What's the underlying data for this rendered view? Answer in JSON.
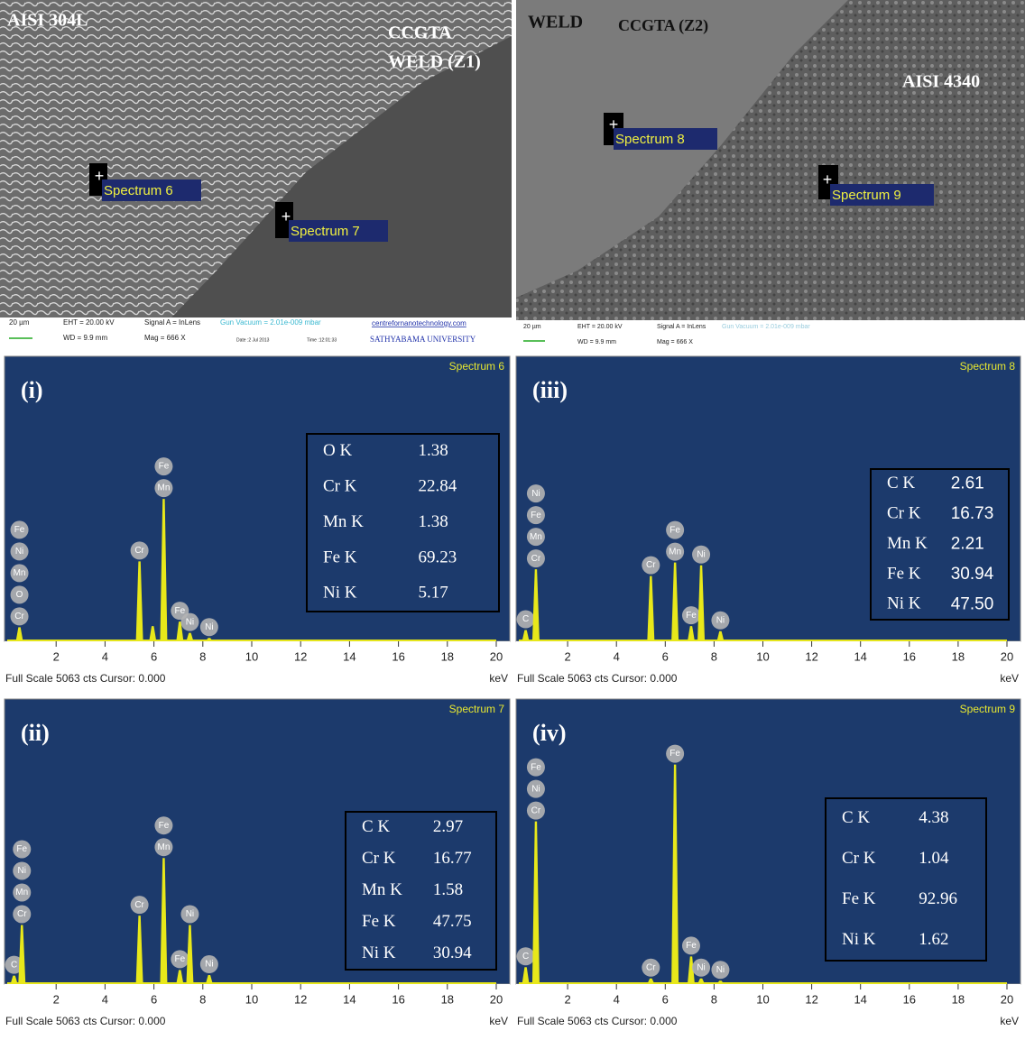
{
  "micrographs": [
    {
      "labels": [
        "AISI 304L",
        "CCGTA",
        "WELD (Z1)"
      ],
      "markers": [
        "Spectrum 6",
        "Spectrum 7"
      ],
      "footer": [
        "20 µm",
        "EHT = 20.00 kV",
        "WD = 9.9 mm",
        "Signal A = InLens",
        "Gun Vacuum = 2.01e-009 mbar",
        "Mag = 666 X",
        "Date :2 Jul 2013",
        "Time :12:01:33",
        "centrefornanotechnology.com",
        "SATHYABAMA UNIVERSITY"
      ]
    },
    {
      "labels": [
        "WELD",
        "CCGTA (Z2)",
        "AISI 4340"
      ],
      "markers": [
        "Spectrum 8",
        "Spectrum 9"
      ],
      "footer": [
        "20 µm",
        "EHT = 20.00 kV",
        "WD = 9.9 mm",
        "Signal A = InLens",
        "Gun Vacuum = 2.01e-009 mbar",
        "Mag = 666 X"
      ]
    }
  ],
  "spectra": [
    {
      "panel": "(i)",
      "name": "Spectrum 6",
      "x_unit": "keV",
      "footer": "Full Scale 5063 cts Cursor: 0.000",
      "xlim": [
        0,
        20
      ],
      "xticks": [
        2,
        4,
        6,
        8,
        10,
        12,
        14,
        16,
        18,
        20
      ],
      "ylim": [
        0,
        5063
      ],
      "composition": [
        [
          "O K",
          "1.38"
        ],
        [
          "Cr K",
          "22.84"
        ],
        [
          "Mn K",
          "1.38"
        ],
        [
          "Fe K",
          "69.23"
        ],
        [
          "Ni K",
          "5.17"
        ]
      ],
      "peaks": [
        {
          "energy": 0.5,
          "height": 250,
          "labels": [
            "Fe",
            "Ni",
            "Mn",
            "O",
            "Cr"
          ]
        },
        {
          "energy": 5.41,
          "height": 1420,
          "labels": [
            "Cr"
          ]
        },
        {
          "energy": 5.95,
          "height": 270,
          "labels": []
        },
        {
          "energy": 6.4,
          "height": 2530,
          "labels": [
            "Fe",
            "Mn"
          ]
        },
        {
          "energy": 7.06,
          "height": 350,
          "labels": [
            "Fe"
          ]
        },
        {
          "energy": 7.47,
          "height": 150,
          "labels": [
            "Ni"
          ]
        },
        {
          "energy": 8.26,
          "height": 60,
          "labels": [
            "Ni"
          ]
        }
      ]
    },
    {
      "panel": "(iii)",
      "name": "Spectrum 8",
      "x_unit": "keV",
      "footer": "Full Scale 5063 cts Cursor: 0.000",
      "xlim": [
        0,
        20
      ],
      "xticks": [
        2,
        4,
        6,
        8,
        10,
        12,
        14,
        16,
        18,
        20
      ],
      "ylim": [
        0,
        5063
      ],
      "composition": [
        [
          "C K",
          "2.61"
        ],
        [
          "Cr K",
          "16.73"
        ],
        [
          "Mn K",
          "2.21"
        ],
        [
          "Fe K",
          "30.94"
        ],
        [
          "Ni K",
          "47.50"
        ]
      ],
      "peaks": [
        {
          "energy": 0.28,
          "height": 200,
          "labels": [
            "C"
          ]
        },
        {
          "energy": 0.7,
          "height": 1280,
          "labels": [
            "Ni",
            "Fe",
            "Mn",
            "Cr"
          ]
        },
        {
          "energy": 5.41,
          "height": 1160,
          "labels": [
            "Cr"
          ]
        },
        {
          "energy": 6.4,
          "height": 1400,
          "labels": [
            "Fe",
            "Mn"
          ]
        },
        {
          "energy": 7.06,
          "height": 270,
          "labels": [
            "Fe"
          ]
        },
        {
          "energy": 7.47,
          "height": 1350,
          "labels": [
            "Ni"
          ]
        },
        {
          "energy": 8.26,
          "height": 180,
          "labels": [
            "Ni"
          ]
        }
      ]
    },
    {
      "panel": "(ii)",
      "name": "Spectrum 7",
      "x_unit": "keV",
      "footer": "Full Scale 5063 cts Cursor: 0.000",
      "xlim": [
        0,
        20
      ],
      "xticks": [
        2,
        4,
        6,
        8,
        10,
        12,
        14,
        16,
        18,
        20
      ],
      "ylim": [
        0,
        5063
      ],
      "composition": [
        [
          "C K",
          "2.97"
        ],
        [
          "Cr K",
          "16.77"
        ],
        [
          "Mn K",
          "1.58"
        ],
        [
          "Fe K",
          "47.75"
        ],
        [
          "Ni K",
          "30.94"
        ]
      ],
      "peaks": [
        {
          "energy": 0.28,
          "height": 150,
          "labels": [
            "C"
          ]
        },
        {
          "energy": 0.6,
          "height": 1050,
          "labels": [
            "Fe",
            "Ni",
            "Mn",
            "Cr"
          ]
        },
        {
          "energy": 5.41,
          "height": 1215,
          "labels": [
            "Cr"
          ]
        },
        {
          "energy": 6.4,
          "height": 2240,
          "labels": [
            "Fe",
            "Mn"
          ]
        },
        {
          "energy": 7.06,
          "height": 250,
          "labels": [
            "Fe"
          ]
        },
        {
          "energy": 7.47,
          "height": 1050,
          "labels": [
            "Ni"
          ]
        },
        {
          "energy": 8.26,
          "height": 160,
          "labels": [
            "Ni"
          ]
        }
      ]
    },
    {
      "panel": "(iv)",
      "name": "Spectrum 9",
      "x_unit": "keV",
      "footer": "Full Scale 5063 cts Cursor: 0.000",
      "xlim": [
        0,
        20
      ],
      "xticks": [
        2,
        4,
        6,
        8,
        10,
        12,
        14,
        16,
        18,
        20
      ],
      "ylim": [
        0,
        5063
      ],
      "composition": [
        [
          "C K",
          "4.38"
        ],
        [
          "Cr K",
          "1.04"
        ],
        [
          "Fe K",
          "92.96"
        ],
        [
          "Ni K",
          "1.62"
        ]
      ],
      "peaks": [
        {
          "energy": 0.28,
          "height": 300,
          "labels": [
            "C"
          ]
        },
        {
          "energy": 0.7,
          "height": 2890,
          "labels": [
            "Fe",
            "Ni",
            "Cr"
          ]
        },
        {
          "energy": 5.41,
          "height": 100,
          "labels": [
            "Cr"
          ]
        },
        {
          "energy": 6.4,
          "height": 3900,
          "labels": [
            "Fe"
          ]
        },
        {
          "energy": 7.06,
          "height": 490,
          "labels": [
            "Fe"
          ]
        },
        {
          "energy": 7.47,
          "height": 100,
          "labels": [
            "Ni"
          ]
        },
        {
          "energy": 8.26,
          "height": 60,
          "labels": [
            "Ni"
          ]
        }
      ]
    }
  ]
}
